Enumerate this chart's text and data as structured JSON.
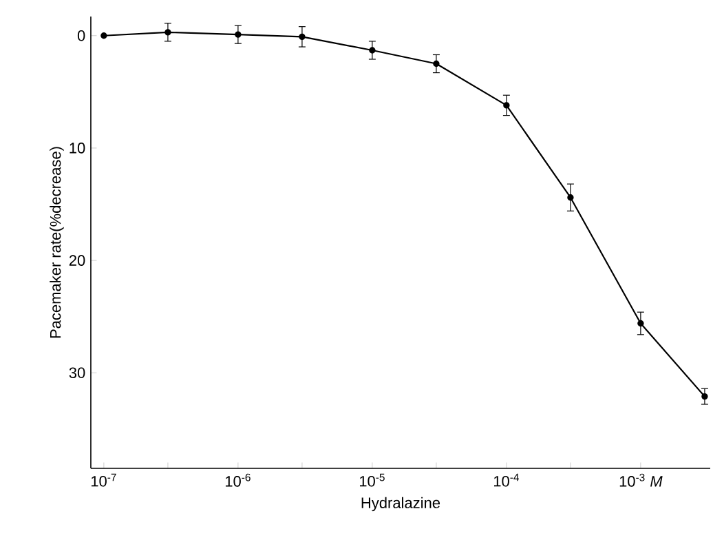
{
  "chart_data": {
    "type": "line",
    "xlabel": "Hydralazine",
    "ylabel": "Pacemaker rate(%decrease)",
    "x": [
      1e-07,
      3e-07,
      1e-06,
      3e-06,
      1e-05,
      3e-05,
      0.0001,
      0.0003,
      0.001,
      0.003
    ],
    "values": [
      0,
      -0.3,
      -0.1,
      0.1,
      1.3,
      2.5,
      6.2,
      14.4,
      25.6,
      32.1
    ],
    "errors": [
      null,
      0.8,
      0.8,
      0.9,
      0.8,
      0.8,
      0.9,
      1.2,
      1.0,
      0.7
    ],
    "color": "#000000",
    "log": "x",
    "marker": "circle",
    "line_style": "solid",
    "xlim": [
      8e-08,
      0.0033
    ],
    "ylim": [
      38.5,
      -1.7
    ],
    "xticks": [
      {
        "value": 1e-07,
        "label": "10$^{-7}$"
      },
      {
        "value": 3e-07,
        "label": null
      },
      {
        "value": 1e-06,
        "label": "10$^{-6}$"
      },
      {
        "value": 3e-06,
        "label": null
      },
      {
        "value": 1e-05,
        "label": "10$^{-5}$"
      },
      {
        "value": 3e-05,
        "label": null
      },
      {
        "value": 0.0001,
        "label": "10$^{-4}$"
      },
      {
        "value": 0.0003,
        "label": null
      },
      {
        "value": 0.001,
        "label": "10$^{-3}$ *M*"
      }
    ],
    "yticks": [
      0,
      10,
      20,
      30
    ],
    "grid": false
  }
}
